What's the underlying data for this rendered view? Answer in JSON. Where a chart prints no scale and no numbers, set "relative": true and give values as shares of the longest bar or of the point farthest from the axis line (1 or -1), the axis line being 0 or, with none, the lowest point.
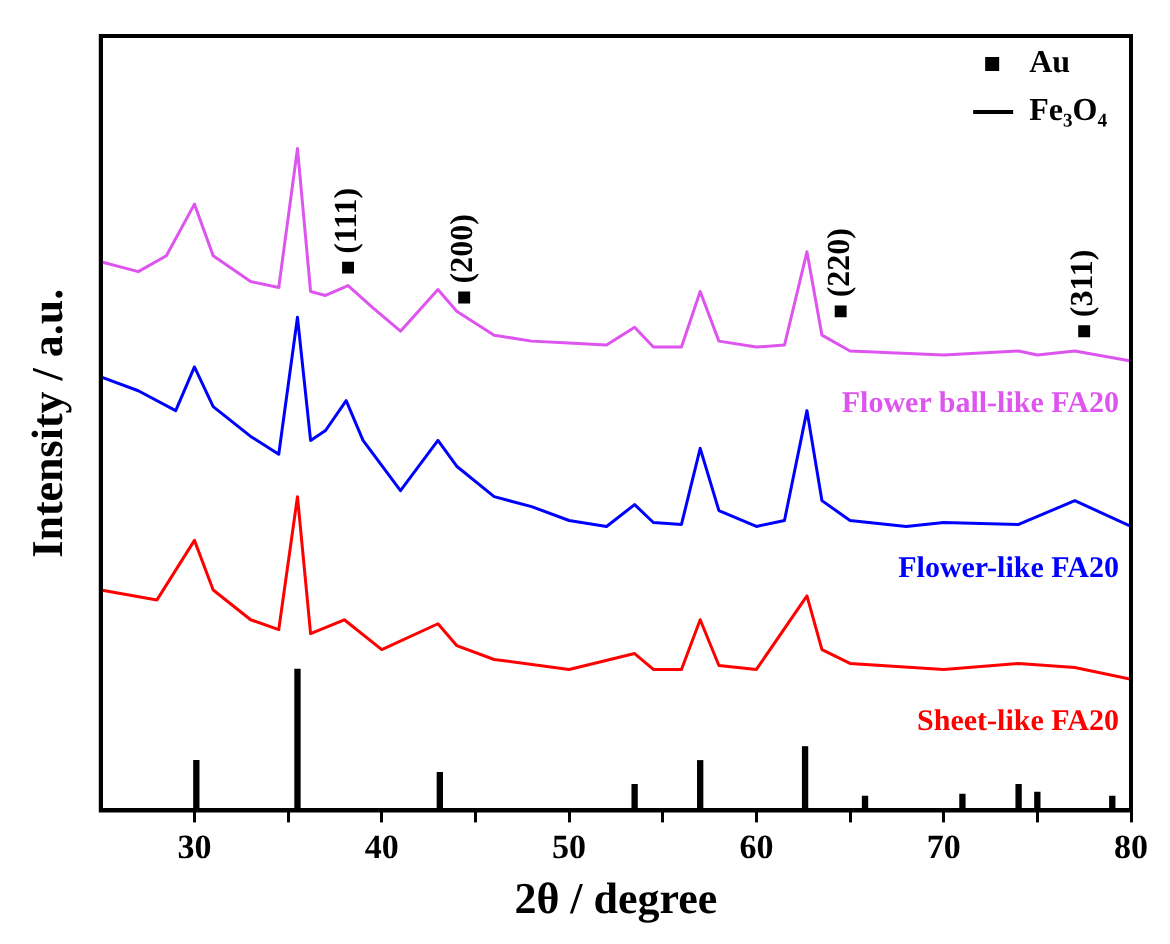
{
  "chart_data": {
    "type": "line",
    "relative": true,
    "xlabel": "2θ / degree",
    "ylabel": "Intensity / a.u.",
    "xlim": [
      25,
      80
    ],
    "xticks": [
      30,
      {
        "value": 35,
        "label": null
      },
      40,
      {
        "value": 45,
        "label": null
      },
      50,
      {
        "value": 55,
        "label": null
      },
      60,
      {
        "value": 65,
        "label": null
      },
      70,
      {
        "value": 75,
        "label": null
      },
      80
    ],
    "grid": false,
    "legend": "top right",
    "series": [
      {
        "name": "Flower ball-like FA20",
        "color": "#dd55ee",
        "x": [
          25,
          27,
          28.5,
          30,
          31,
          33,
          34.5,
          35.5,
          36.2,
          37,
          38.2,
          39.5,
          41,
          43,
          44,
          46,
          48,
          50,
          52,
          53.5,
          54.5,
          56,
          57,
          58,
          60,
          61.5,
          62.7,
          63.5,
          65,
          70,
          74,
          75,
          77,
          80
        ],
        "values": [
          0.829,
          0.814,
          0.838,
          0.916,
          0.838,
          0.799,
          0.79,
          1.0,
          0.784,
          0.778,
          0.793,
          0.76,
          0.724,
          0.787,
          0.754,
          0.718,
          0.709,
          0.706,
          0.703,
          0.73,
          0.7,
          0.7,
          0.784,
          0.709,
          0.7,
          0.703,
          0.844,
          0.718,
          0.694,
          0.688,
          0.694,
          0.688,
          0.694,
          0.679
        ]
      },
      {
        "name": "Flower-like FA20",
        "color": "#0000ff",
        "x": [
          25,
          27,
          29,
          30,
          31,
          33,
          34.5,
          35.5,
          36.2,
          37,
          38.1,
          39,
          41,
          43,
          44,
          46,
          48,
          50,
          52,
          53.5,
          54.5,
          56,
          57,
          58,
          60,
          61.5,
          62.7,
          63.5,
          65,
          68,
          70,
          74,
          77,
          80
        ],
        "values": [
          0.655,
          0.634,
          0.604,
          0.67,
          0.61,
          0.565,
          0.538,
          0.745,
          0.559,
          0.574,
          0.619,
          0.559,
          0.483,
          0.559,
          0.52,
          0.474,
          0.459,
          0.438,
          0.429,
          0.462,
          0.435,
          0.432,
          0.547,
          0.453,
          0.429,
          0.438,
          0.604,
          0.468,
          0.438,
          0.429,
          0.435,
          0.432,
          0.468,
          0.429
        ]
      },
      {
        "name": "Sheet-like FA20",
        "color": "#ff0000",
        "x": [
          25,
          28,
          30,
          31,
          33,
          34.5,
          35.5,
          36.2,
          38,
          40,
          43,
          44,
          46,
          50,
          53.5,
          54.5,
          56,
          57,
          58,
          60,
          62.7,
          63.5,
          65,
          70,
          74,
          77,
          80
        ],
        "values": [
          0.333,
          0.318,
          0.408,
          0.333,
          0.288,
          0.273,
          0.474,
          0.267,
          0.288,
          0.243,
          0.282,
          0.249,
          0.228,
          0.213,
          0.237,
          0.213,
          0.213,
          0.288,
          0.219,
          0.213,
          0.324,
          0.243,
          0.222,
          0.213,
          0.222,
          0.216,
          0.198
        ]
      },
      {
        "name": "Au",
        "type": "scatter",
        "marker": "square",
        "color": "#000000",
        "x": [
          38.2,
          44.4,
          64.5,
          77.5
        ],
        "values": [
          0.82,
          0.775,
          0.754,
          0.724
        ]
      },
      {
        "name": "Fe₃O₄",
        "type": "bar",
        "color": "#000000",
        "x": [
          30.1,
          35.5,
          43.1,
          53.5,
          57,
          62.6,
          65.8,
          71,
          74,
          75,
          79
        ],
        "values": [
          0.075,
          0.213,
          0.057,
          0.039,
          0.075,
          0.096,
          0.021,
          0.024,
          0.039,
          0.027,
          0.021
        ]
      }
    ],
    "annotations": [
      {
        "text": "(111)",
        "x": 38.2,
        "y": 0.82
      },
      {
        "text": "(200)",
        "x": 44.4,
        "y": 0.775
      },
      {
        "text": "(220)",
        "x": 64.5,
        "y": 0.754
      },
      {
        "text": "(311)",
        "x": 77.5,
        "y": 0.724
      }
    ]
  }
}
